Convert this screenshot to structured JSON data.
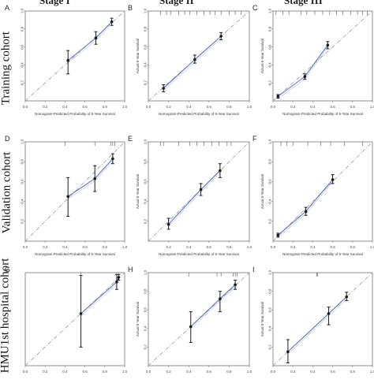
{
  "figure": {
    "stage_headers": [
      "Stage I",
      "Stage II",
      "Stage III"
    ],
    "cohort_labels": [
      "Training cohort",
      "Validation cohort",
      "HMU1st hospital cohort"
    ],
    "colors": {
      "ideal_line": "#9a9a9a",
      "calibration_line": "#3f5fbf",
      "point": "#1a1a1a",
      "rug": "#555555"
    }
  },
  "chart_data": [
    {
      "panel": "A",
      "type": "scatter",
      "xlabel": "Nomogram-Predicted Probability of 5-Year Survival",
      "ylabel": "",
      "xlim": [
        0.0,
        1.0
      ],
      "ylim": [
        0.0,
        1.0
      ],
      "xticks": [
        "0.0",
        "0.2",
        "0.4",
        "0.6",
        "0.8",
        "1.0"
      ],
      "yticks": [
        "0.2",
        "0.4",
        "0.6",
        "0.8",
        "1.0"
      ],
      "points": [
        {
          "x": 0.43,
          "y": 0.45,
          "lo": 0.3,
          "hi": 0.56
        },
        {
          "x": 0.71,
          "y": 0.7,
          "lo": 0.63,
          "hi": 0.77
        },
        {
          "x": 0.87,
          "y": 0.88,
          "lo": 0.84,
          "hi": 0.92
        }
      ],
      "rug": []
    },
    {
      "panel": "B",
      "type": "scatter",
      "xlabel": "Nomogram-Predicted Probability of 5-Year Survival",
      "ylabel": "Actual 5-Year Survival",
      "xlim": [
        0.0,
        1.0
      ],
      "ylim": [
        0.0,
        1.0
      ],
      "xticks": [
        "0.0",
        "0.2",
        "0.4",
        "0.6",
        "0.8",
        "1.0"
      ],
      "yticks": [
        "0.2",
        "0.4",
        "0.6",
        "0.8",
        "1.0"
      ],
      "points": [
        {
          "x": 0.15,
          "y": 0.14,
          "lo": 0.1,
          "hi": 0.18
        },
        {
          "x": 0.46,
          "y": 0.46,
          "lo": 0.42,
          "hi": 0.51
        },
        {
          "x": 0.72,
          "y": 0.72,
          "lo": 0.68,
          "hi": 0.76
        }
      ],
      "rug": [
        0.12,
        0.18,
        0.22,
        0.3,
        0.36,
        0.41,
        0.48,
        0.55,
        0.61,
        0.66,
        0.72,
        0.8,
        0.86,
        0.92
      ]
    },
    {
      "panel": "C",
      "type": "scatter",
      "xlabel": "Nomogram-Predicted Probability of 5-Year Survival",
      "ylabel": "Actual 5-Year Survival",
      "xlim": [
        0.0,
        1.0
      ],
      "ylim": [
        0.0,
        1.0
      ],
      "xticks": [
        "0.0",
        "0.2",
        "0.4",
        "0.6",
        "0.8",
        "1.0"
      ],
      "yticks": [
        "0.2",
        "0.4",
        "0.6",
        "0.8",
        "1.0"
      ],
      "points": [
        {
          "x": 0.05,
          "y": 0.05,
          "lo": 0.03,
          "hi": 0.07
        },
        {
          "x": 0.32,
          "y": 0.27,
          "lo": 0.24,
          "hi": 0.3
        },
        {
          "x": 0.55,
          "y": 0.62,
          "lo": 0.58,
          "hi": 0.66
        }
      ],
      "rug": [
        0.03,
        0.1,
        0.16,
        0.28,
        0.34,
        0.42,
        0.5,
        0.57,
        0.64,
        0.7,
        0.78,
        0.85,
        0.9,
        0.95
      ]
    },
    {
      "panel": "D",
      "type": "scatter",
      "xlabel": "Nomogram-Predicted Probability of 5-Year Survival",
      "ylabel": "",
      "xlim": [
        0.0,
        1.0
      ],
      "ylim": [
        0.0,
        1.0
      ],
      "xticks": [
        "0.0",
        "0.2",
        "0.4",
        "0.6",
        "0.8",
        "1.0"
      ],
      "yticks": [
        "0.2",
        "0.4",
        "0.6",
        "0.8",
        "1.0"
      ],
      "points": [
        {
          "x": 0.43,
          "y": 0.45,
          "lo": 0.25,
          "hi": 0.64
        },
        {
          "x": 0.7,
          "y": 0.63,
          "lo": 0.5,
          "hi": 0.76
        },
        {
          "x": 0.88,
          "y": 0.83,
          "lo": 0.78,
          "hi": 0.88
        }
      ],
      "rug": [
        0.4,
        0.7,
        0.86,
        0.88,
        0.9
      ]
    },
    {
      "panel": "E",
      "type": "scatter",
      "xlabel": "Nomogram-Predicted Probability of 5-Year Survival",
      "ylabel": "Actual 5-Year Survival",
      "xlim": [
        0.0,
        1.0
      ],
      "ylim": [
        0.0,
        1.0
      ],
      "xticks": [
        "0.2",
        "0.4",
        "0.6",
        "0.8",
        "1.0"
      ],
      "yticks": [
        "0.2",
        "0.4",
        "0.6",
        "0.8",
        "1.0"
      ],
      "points": [
        {
          "x": 0.2,
          "y": 0.17,
          "lo": 0.12,
          "hi": 0.23
        },
        {
          "x": 0.52,
          "y": 0.52,
          "lo": 0.46,
          "hi": 0.58
        },
        {
          "x": 0.71,
          "y": 0.71,
          "lo": 0.64,
          "hi": 0.78
        }
      ],
      "rug": [
        0.12,
        0.15,
        0.3,
        0.41,
        0.48,
        0.55,
        0.63,
        0.7,
        0.78,
        0.82
      ]
    },
    {
      "panel": "F",
      "type": "scatter",
      "xlabel": "Nomogram-Predicted Probability of 5-Year Survival",
      "ylabel": "Actual 5-Year Survival",
      "xlim": [
        0.0,
        1.0
      ],
      "ylim": [
        0.0,
        1.0
      ],
      "xticks": [
        "0.0",
        "0.2",
        "0.4",
        "0.6",
        "0.8",
        "1.0"
      ],
      "yticks": [
        "0.2",
        "0.4",
        "0.6",
        "0.8",
        "1.0"
      ],
      "points": [
        {
          "x": 0.05,
          "y": 0.06,
          "lo": 0.04,
          "hi": 0.08
        },
        {
          "x": 0.33,
          "y": 0.3,
          "lo": 0.26,
          "hi": 0.34
        },
        {
          "x": 0.6,
          "y": 0.62,
          "lo": 0.58,
          "hi": 0.67
        }
      ],
      "rug": [
        0.08,
        0.14,
        0.2,
        0.35,
        0.48,
        0.58,
        0.72,
        0.9
      ]
    },
    {
      "panel": "G",
      "type": "scatter",
      "xlabel": "",
      "ylabel": "",
      "xlim": [
        0.0,
        1.0
      ],
      "ylim": [
        0.0,
        1.0
      ],
      "xticks": [
        "0.0",
        "0.2",
        "0.4",
        "0.6",
        "0.8",
        "1.0"
      ],
      "yticks": [],
      "points": [
        {
          "x": 0.56,
          "y": 0.56,
          "lo": 0.2,
          "hi": 0.97
        },
        {
          "x": 0.92,
          "y": 0.9,
          "lo": 0.82,
          "hi": 0.98
        },
        {
          "x": 0.94,
          "y": 0.95,
          "lo": 0.92,
          "hi": 0.98
        }
      ],
      "rug": [
        0.56,
        0.92,
        0.94
      ]
    },
    {
      "panel": "H",
      "type": "scatter",
      "xlabel": "",
      "ylabel": "Actual 5-Year Survival",
      "xlim": [
        0.0,
        1.0
      ],
      "ylim": [
        0.0,
        1.0
      ],
      "xticks": [
        "0.0",
        "0.2",
        "0.4",
        "0.6",
        "0.8",
        "1.0"
      ],
      "yticks": [
        "0.2",
        "0.4",
        "0.6",
        "0.8",
        "1.0"
      ],
      "points": [
        {
          "x": 0.42,
          "y": 0.42,
          "lo": 0.25,
          "hi": 0.58
        },
        {
          "x": 0.71,
          "y": 0.72,
          "lo": 0.58,
          "hi": 0.8
        },
        {
          "x": 0.86,
          "y": 0.87,
          "lo": 0.82,
          "hi": 0.92
        }
      ],
      "rug": [
        0.4,
        0.68,
        0.72,
        0.84,
        0.86,
        0.88
      ]
    },
    {
      "panel": "I",
      "type": "scatter",
      "xlabel": "",
      "ylabel": "Actual 5-Year Survival",
      "xlim": [
        0.0,
        1.0
      ],
      "ylim": [
        0.0,
        1.0
      ],
      "xticks": [
        "0.0",
        "0.2",
        "0.4",
        "0.6",
        "0.8",
        "1.0"
      ],
      "yticks": [
        "0.2",
        "0.4",
        "0.6",
        "0.8",
        "1.0"
      ],
      "points": [
        {
          "x": 0.15,
          "y": 0.15,
          "lo": 0.03,
          "hi": 0.28
        },
        {
          "x": 0.56,
          "y": 0.56,
          "lo": 0.44,
          "hi": 0.63
        },
        {
          "x": 0.74,
          "y": 0.74,
          "lo": 0.7,
          "hi": 0.79
        }
      ],
      "rug": [
        0.44,
        0.45
      ]
    }
  ]
}
